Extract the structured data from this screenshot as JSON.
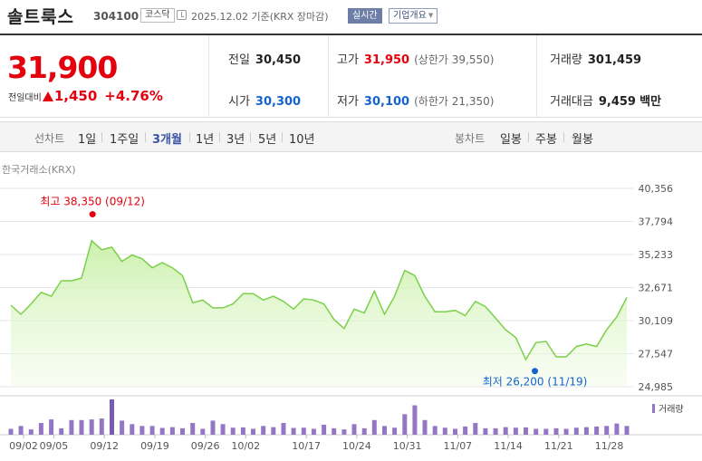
{
  "header": {
    "stock_name": "솔트룩스",
    "stock_code": "304100",
    "market_badge": "코스닥",
    "date_basis": "2025.12.02 기준(KRX 장마감)",
    "realtime_button": "실시간",
    "company_button": "기업개요"
  },
  "quote": {
    "price": "31,900",
    "change_label": "전일대비",
    "change_value": "1,450",
    "change_pct": "+4.76%",
    "prev_close_label": "전일",
    "prev_close": "30,450",
    "open_label": "시가",
    "open": "30,300",
    "high_label": "고가",
    "high": "31,950",
    "upper_limit_label": "(상한가",
    "upper_limit": "39,550)",
    "low_label": "저가",
    "low": "30,100",
    "lower_limit_label": "(하한가",
    "lower_limit": "21,350)",
    "volume_label": "거래량",
    "volume": "301,459",
    "turnover_label": "거래대금",
    "turnover": "9,459",
    "turnover_unit": "백만"
  },
  "period_bar": {
    "line_chart_label": "선차트",
    "periods": [
      "1일",
      "1주일",
      "3개월",
      "1년",
      "3년",
      "5년",
      "10년"
    ],
    "active_period": "3개월",
    "candle_chart_label": "봉차트",
    "candle_periods": [
      "일봉",
      "주봉",
      "월봉"
    ]
  },
  "colors": {
    "up": "#e5000e",
    "down": "#1463cf",
    "line": "#7bd04a",
    "area_top": "#c9f0a8",
    "volume": "#9477c4",
    "volume_highlight": "#7a5bb3"
  },
  "chart_data": {
    "type": "area",
    "source_label": "한국거래소(KRX)",
    "yticks": [
      "40,356",
      "37,794",
      "35,233",
      "32,671",
      "30,109",
      "27,547",
      "24,985"
    ],
    "ylim": [
      24985,
      40356
    ],
    "xticks": [
      "09/02",
      "09/05",
      "09/12",
      "09/19",
      "09/26",
      "10/02",
      "10/17",
      "10/24",
      "10/31",
      "11/07",
      "11/14",
      "11/21",
      "11/28"
    ],
    "max_label": "최고 38,350 (09/12)",
    "min_label": "최저 26,200 (11/19)",
    "volume_legend": "거래량",
    "price": [
      31300,
      30600,
      31400,
      32300,
      32000,
      33200,
      33200,
      33400,
      36300,
      35600,
      35800,
      34700,
      35200,
      34900,
      34200,
      34600,
      34200,
      33600,
      31500,
      31700,
      31100,
      31100,
      31400,
      32200,
      32200,
      31700,
      32000,
      31600,
      31000,
      31800,
      31700,
      31400,
      30200,
      29500,
      31000,
      30700,
      32400,
      30600,
      32000,
      34000,
      33600,
      32000,
      30800,
      30800,
      30900,
      30500,
      31600,
      31200,
      30300,
      29400,
      28800,
      27100,
      28400,
      28500,
      27300,
      27300,
      28100,
      28300,
      28100,
      29400,
      30400,
      31900
    ],
    "volume": [
      20,
      30,
      18,
      40,
      52,
      22,
      50,
      50,
      52,
      55,
      120,
      48,
      36,
      30,
      30,
      23,
      26,
      22,
      40,
      20,
      48,
      36,
      24,
      25,
      20,
      30,
      26,
      40,
      23,
      24,
      20,
      34,
      22,
      18,
      36,
      22,
      50,
      30,
      24,
      70,
      100,
      50,
      30,
      24,
      20,
      28,
      40,
      22,
      22,
      26,
      24,
      25,
      20,
      20,
      22,
      20,
      24,
      26,
      28,
      30,
      38,
      30
    ]
  }
}
